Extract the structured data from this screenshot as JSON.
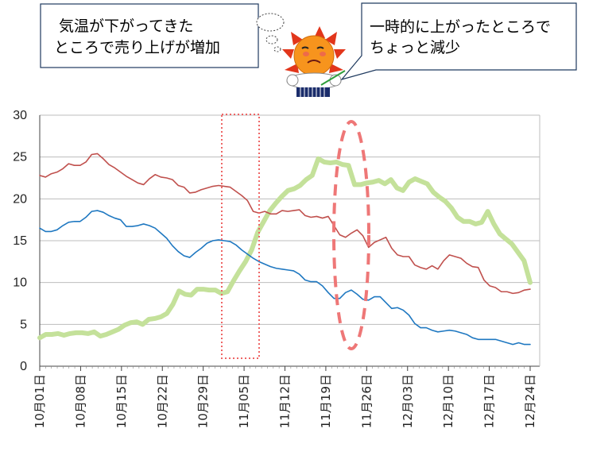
{
  "callouts": {
    "left": [
      "気温が下がってきた",
      "ところで売り上げが増加"
    ],
    "right": [
      "一時的に上がったところで",
      "ちょっと減少"
    ]
  },
  "chart_data": {
    "type": "line",
    "title": "",
    "xlabel": "",
    "ylabel": "",
    "ylim": [
      0,
      30
    ],
    "yticks": [
      0,
      5,
      10,
      15,
      20,
      25,
      30
    ],
    "grid": true,
    "x_tick_labels": [
      "10月01日",
      "10月08日",
      "10月15日",
      "10月22日",
      "10月29日",
      "11月05日",
      "11月12日",
      "11月19日",
      "11月26日",
      "12月03日",
      "12月10日",
      "12月17日",
      "12月24日"
    ],
    "x_start": "10月01日",
    "series": [
      {
        "name": "",
        "color": "#c0504d",
        "values": [
          22.8,
          22.6,
          23.0,
          23.2,
          23.6,
          24.2,
          24.0,
          24.0,
          24.4,
          25.3,
          25.4,
          24.8,
          24.1,
          23.7,
          23.2,
          22.7,
          22.3,
          21.9,
          21.7,
          22.4,
          22.9,
          22.6,
          22.5,
          22.3,
          21.6,
          21.4,
          20.7,
          20.8,
          21.1,
          21.3,
          21.5,
          21.6,
          21.5,
          21.4,
          20.9,
          20.4,
          19.8,
          18.5,
          18.3,
          18.5,
          18.2,
          18.2,
          18.6,
          18.5,
          18.6,
          18.7,
          18.0,
          17.8,
          17.9,
          17.7,
          17.9,
          16.8,
          15.7,
          15.4,
          15.9,
          16.3,
          15.6,
          14.2,
          14.8,
          15.1,
          15.4,
          14.1,
          13.3,
          13.1,
          13.1,
          12.1,
          11.8,
          11.6,
          12.0,
          11.6,
          12.6,
          13.3,
          13.1,
          12.9,
          12.3,
          11.9,
          11.8,
          10.3,
          9.6,
          9.4,
          8.9,
          8.9,
          8.7,
          8.8,
          9.1,
          9.2
        ]
      },
      {
        "name": "",
        "color": "#1f78c1",
        "values": [
          16.5,
          16.1,
          16.1,
          16.3,
          16.8,
          17.2,
          17.3,
          17.3,
          17.8,
          18.5,
          18.6,
          18.4,
          18.0,
          17.7,
          17.5,
          16.7,
          16.7,
          16.8,
          17.0,
          16.8,
          16.5,
          15.9,
          15.3,
          14.4,
          13.7,
          13.2,
          13.0,
          13.6,
          14.1,
          14.7,
          15.0,
          15.1,
          15.0,
          14.9,
          14.5,
          13.9,
          13.4,
          12.9,
          12.5,
          12.2,
          11.9,
          11.7,
          11.6,
          11.5,
          11.4,
          11.0,
          10.3,
          10.1,
          10.1,
          9.6,
          8.8,
          8.1,
          8.1,
          8.8,
          9.1,
          8.6,
          8.0,
          7.9,
          8.3,
          8.3,
          7.6,
          6.9,
          7.0,
          6.7,
          6.1,
          5.1,
          4.6,
          4.6,
          4.3,
          4.1,
          4.2,
          4.3,
          4.2,
          4.0,
          3.8,
          3.4,
          3.2,
          3.2,
          3.2,
          3.2,
          3.0,
          2.8,
          2.6,
          2.8,
          2.6,
          2.6
        ]
      },
      {
        "name": "",
        "color": "#c4e19a",
        "values": [
          3.4,
          3.8,
          3.8,
          3.9,
          3.7,
          3.9,
          4.0,
          4.0,
          3.9,
          4.1,
          3.6,
          3.8,
          4.1,
          4.4,
          4.9,
          5.2,
          5.3,
          5.0,
          5.6,
          5.7,
          5.9,
          6.3,
          7.4,
          9.0,
          8.6,
          8.5,
          9.2,
          9.2,
          9.1,
          9.1,
          8.7,
          8.9,
          10.2,
          11.4,
          12.5,
          13.9,
          16.0,
          17.3,
          18.6,
          19.5,
          20.3,
          21.0,
          21.2,
          21.6,
          22.3,
          22.8,
          24.8,
          24.4,
          24.3,
          24.4,
          24.1,
          24.0,
          21.7,
          21.7,
          21.9,
          22.0,
          22.2,
          21.8,
          22.3,
          21.3,
          21.0,
          22.0,
          22.4,
          22.1,
          21.8,
          20.8,
          20.2,
          19.7,
          18.9,
          17.8,
          17.3,
          17.3,
          17.0,
          17.2,
          18.5,
          17.0,
          15.8,
          15.2,
          14.6,
          13.6,
          12.6,
          10.0
        ]
      }
    ]
  }
}
